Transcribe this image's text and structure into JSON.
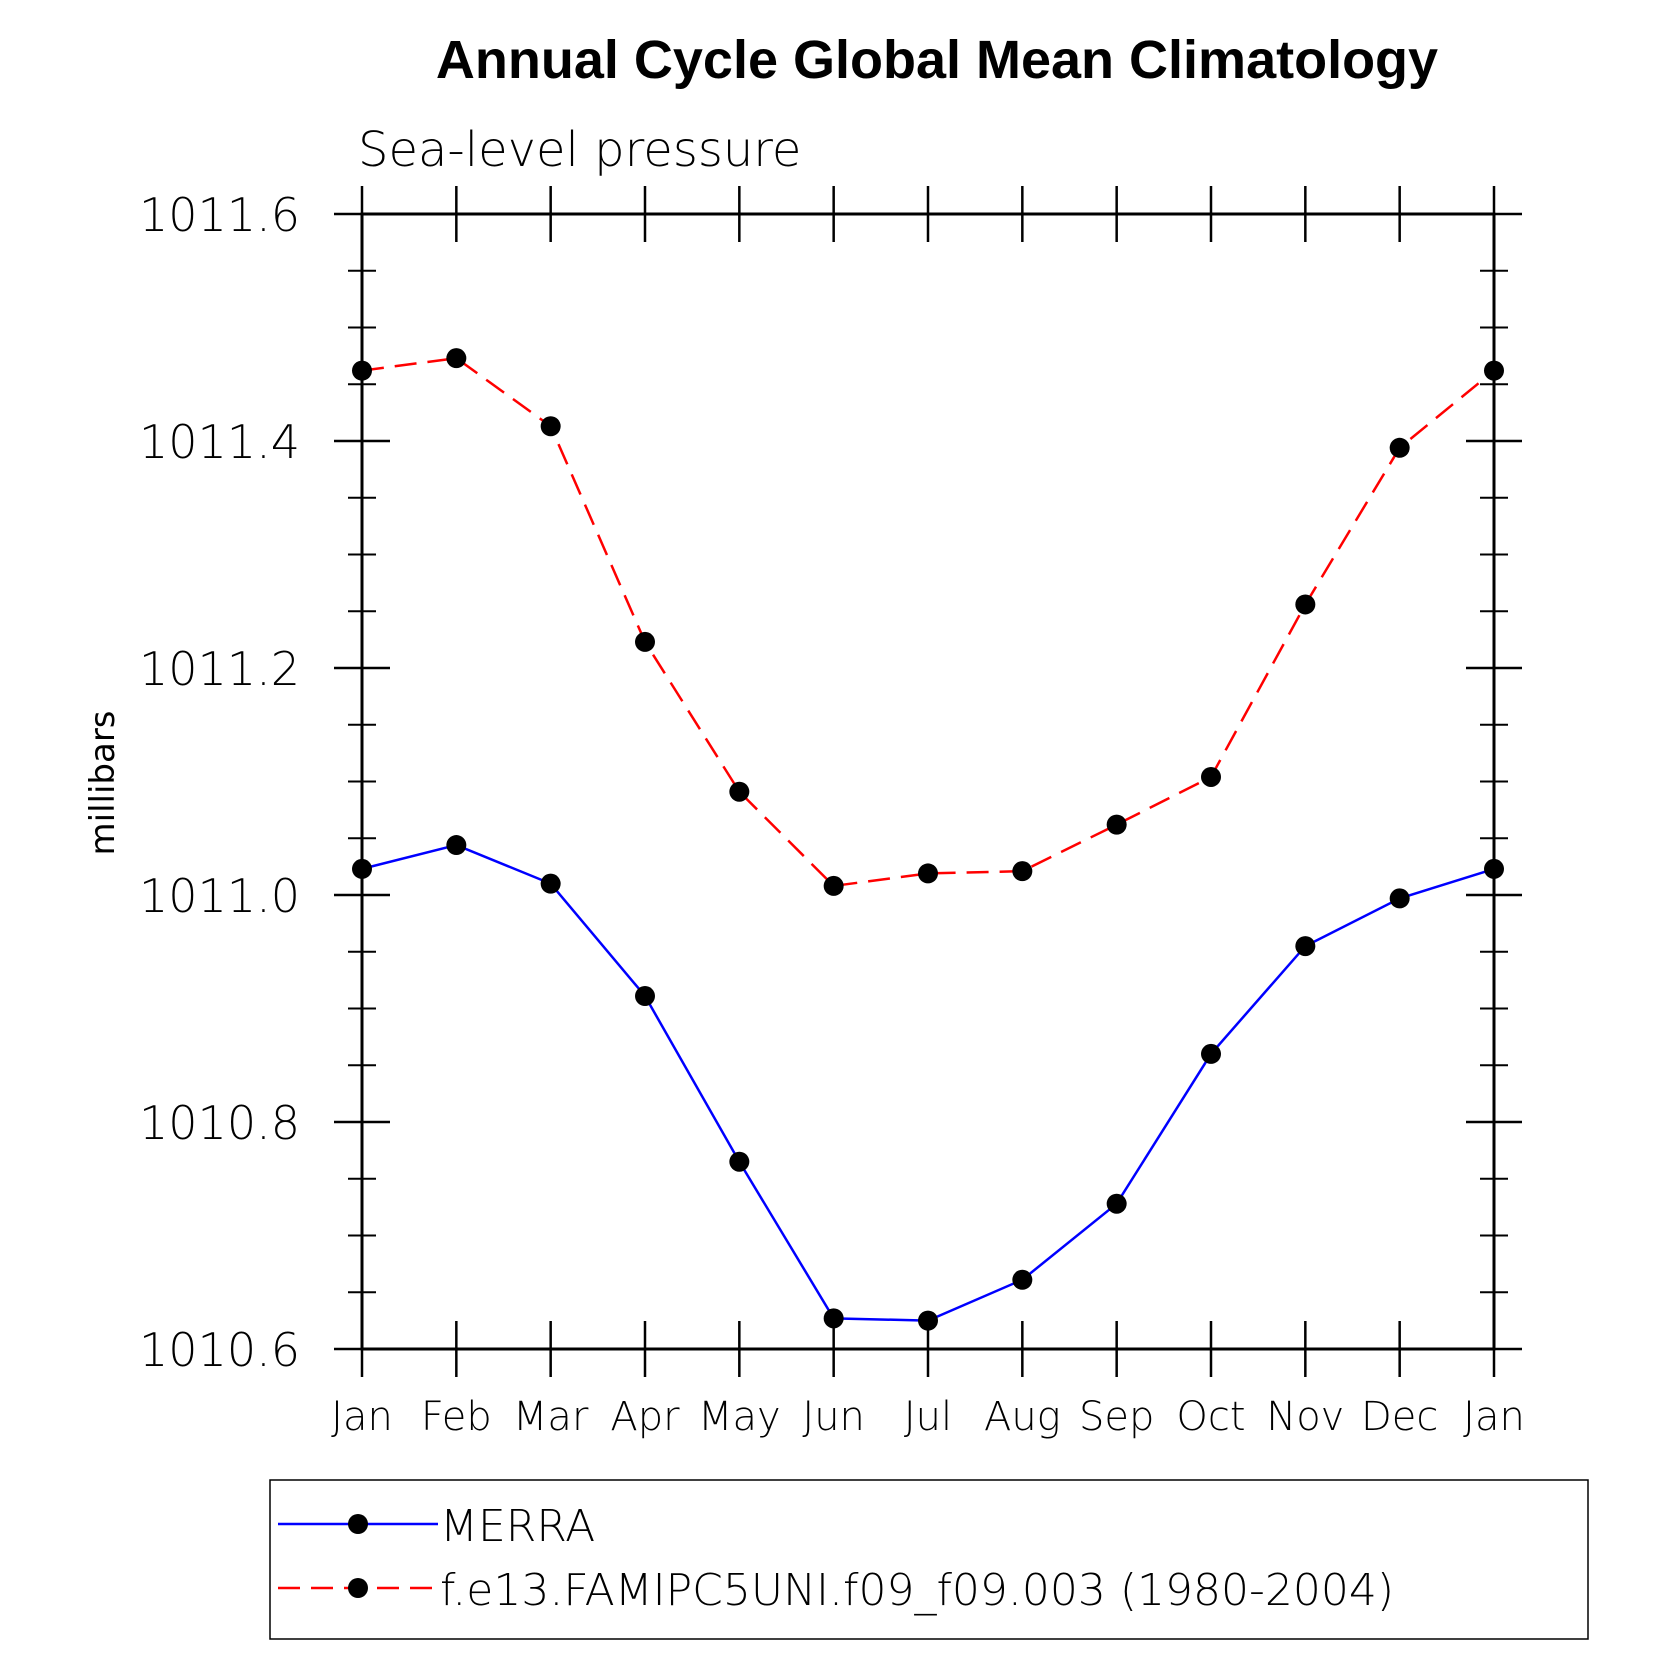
{
  "chart_data": {
    "type": "line",
    "title": "Annual Cycle Global Mean Climatology",
    "subtitle": "Sea-level pressure",
    "ylabel": "millibars",
    "xlabel": "",
    "categories": [
      "Jan",
      "Feb",
      "Mar",
      "Apr",
      "May",
      "Jun",
      "Jul",
      "Aug",
      "Sep",
      "Oct",
      "Nov",
      "Dec",
      "Jan"
    ],
    "ylim": [
      1010.6,
      1011.6
    ],
    "yticks": [
      1010.6,
      1010.8,
      1011.0,
      1011.2,
      1011.4,
      1011.6
    ],
    "ytick_labels": [
      "1010.6",
      "1010.8",
      "1011.0",
      "1011.2",
      "1011.4",
      "1011.6"
    ],
    "grid": false,
    "legend_position": "bottom",
    "series": [
      {
        "name": "MERRA",
        "color": "#0000ff",
        "line_style": "solid",
        "marker": "filled-circle",
        "values": [
          1011.023,
          1011.044,
          1011.01,
          1010.911,
          1010.765,
          1010.627,
          1010.625,
          1010.661,
          1010.728,
          1010.86,
          1010.955,
          1010.997,
          1011.023
        ]
      },
      {
        "name": "f.e13.FAMIPC5UNI.f09_f09.003 (1980-2004)",
        "color": "#ff0000",
        "line_style": "dashed",
        "marker": "filled-circle",
        "values": [
          1011.462,
          1011.473,
          1011.413,
          1011.223,
          1011.091,
          1011.008,
          1011.019,
          1011.021,
          1011.062,
          1011.104,
          1011.256,
          1011.394,
          1011.462
        ]
      }
    ]
  }
}
